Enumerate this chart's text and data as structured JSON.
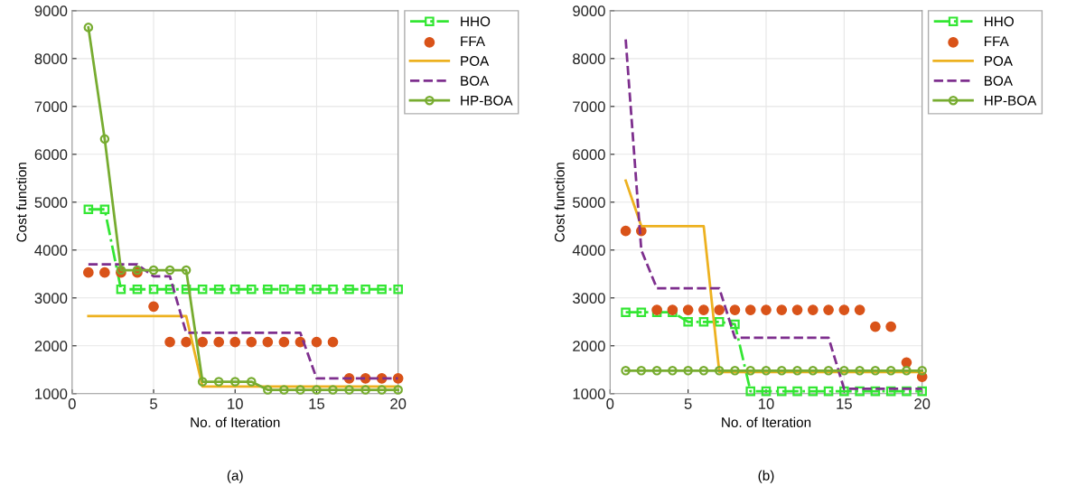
{
  "chart_data": [
    {
      "type": "line",
      "xlabel": "No. of Iteration",
      "ylabel": "Cost function",
      "annotations": [
        "(a)"
      ],
      "xlim": [
        0,
        20
      ],
      "ylim": [
        1000,
        9000
      ],
      "xticks": [
        0,
        5,
        10,
        15,
        20
      ],
      "yticks": [
        1000,
        2000,
        3000,
        4000,
        5000,
        6000,
        7000,
        8000,
        9000
      ],
      "grid": true,
      "legend": "right",
      "x": [
        1,
        2,
        3,
        4,
        5,
        6,
        7,
        8,
        9,
        10,
        11,
        12,
        13,
        14,
        15,
        16,
        17,
        18,
        19,
        20
      ],
      "series": [
        {
          "name": "HHO",
          "color": "#33e633",
          "marker": "square",
          "line_style": "dashdot",
          "values": [
            4850,
            4850,
            3180,
            3180,
            3180,
            3180,
            3180,
            3180,
            3180,
            3180,
            3180,
            3180,
            3180,
            3180,
            3180,
            3180,
            3180,
            3180,
            3180,
            3180
          ]
        },
        {
          "name": "FFA",
          "type": "scatter",
          "color": "#d95319",
          "marker": "circle",
          "values": [
            3530,
            3530,
            3530,
            3530,
            2820,
            2080,
            2080,
            2080,
            2080,
            2080,
            2080,
            2080,
            2080,
            2080,
            2080,
            2080,
            1320,
            1320,
            1320,
            1320
          ]
        },
        {
          "name": "POA",
          "color": "#edb120",
          "marker": "none",
          "line_style": "solid",
          "values": [
            2620,
            2620,
            2620,
            2620,
            2620,
            2620,
            2620,
            1150,
            1150,
            1150,
            1150,
            1150,
            1150,
            1150,
            1150,
            1150,
            1150,
            1150,
            1150,
            1150
          ]
        },
        {
          "name": "BOA",
          "color": "#7e2f8e",
          "marker": "none",
          "line_style": "dashed",
          "values": [
            3700,
            3700,
            3700,
            3700,
            3450,
            3450,
            2270,
            2270,
            2270,
            2270,
            2270,
            2270,
            2270,
            2270,
            1320,
            1320,
            1320,
            1320,
            1320,
            1320
          ]
        },
        {
          "name": "HP-BOA",
          "color": "#77ac30",
          "marker": "circle",
          "line_style": "solid",
          "values": [
            8650,
            6320,
            3580,
            3580,
            3580,
            3580,
            3580,
            1250,
            1250,
            1250,
            1250,
            1080,
            1080,
            1080,
            1080,
            1080,
            1080,
            1080,
            1080,
            1080
          ]
        }
      ]
    },
    {
      "type": "line",
      "xlabel": "No. of Iteration",
      "ylabel": "Cost function",
      "annotations": [
        "(b)"
      ],
      "xlim": [
        0,
        20
      ],
      "ylim": [
        1000,
        9000
      ],
      "xticks": [
        0,
        5,
        10,
        15,
        20
      ],
      "yticks": [
        1000,
        2000,
        3000,
        4000,
        5000,
        6000,
        7000,
        8000,
        9000
      ],
      "grid": true,
      "legend": "right",
      "x": [
        1,
        2,
        3,
        4,
        5,
        6,
        7,
        8,
        9,
        10,
        11,
        12,
        13,
        14,
        15,
        16,
        17,
        18,
        19,
        20
      ],
      "series": [
        {
          "name": "HHO",
          "color": "#33e633",
          "marker": "square",
          "line_style": "dashdot",
          "values": [
            2700,
            2700,
            2700,
            2700,
            2500,
            2500,
            2500,
            2450,
            1050,
            1050,
            1050,
            1050,
            1050,
            1050,
            1050,
            1050,
            1050,
            1050,
            1050,
            1050
          ]
        },
        {
          "name": "FFA",
          "type": "scatter",
          "color": "#d95319",
          "marker": "circle",
          "values": [
            4400,
            4400,
            2750,
            2750,
            2750,
            2750,
            2750,
            2750,
            2750,
            2750,
            2750,
            2750,
            2750,
            2750,
            2750,
            2750,
            2400,
            2400,
            1650,
            1350
          ]
        },
        {
          "name": "POA",
          "color": "#edb120",
          "marker": "none",
          "line_style": "solid",
          "values": [
            5450,
            4500,
            4500,
            4500,
            4500,
            4500,
            1450,
            1450,
            1450,
            1450,
            1450,
            1450,
            1450,
            1450,
            1450,
            1450,
            1450,
            1450,
            1450,
            1450
          ]
        },
        {
          "name": "BOA",
          "color": "#7e2f8e",
          "marker": "none",
          "line_style": "dashed",
          "values": [
            8400,
            4000,
            3200,
            3200,
            3200,
            3200,
            3200,
            2170,
            2170,
            2170,
            2170,
            2170,
            2170,
            2170,
            1100,
            1100,
            1100,
            1100,
            1100,
            1100
          ]
        },
        {
          "name": "HP-BOA",
          "color": "#77ac30",
          "marker": "circle",
          "line_style": "solid",
          "values": [
            1480,
            1480,
            1480,
            1480,
            1480,
            1480,
            1480,
            1480,
            1480,
            1480,
            1480,
            1480,
            1480,
            1480,
            1480,
            1480,
            1480,
            1480,
            1480,
            1480
          ]
        }
      ]
    }
  ]
}
